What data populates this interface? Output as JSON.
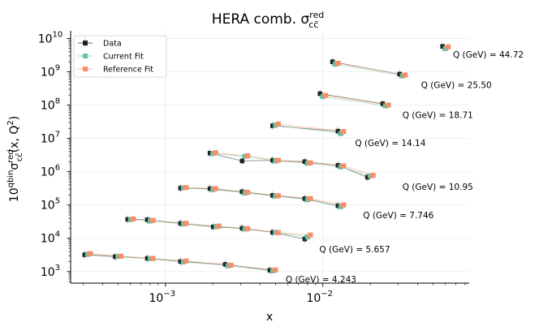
{
  "chart_data": {
    "type": "scatter",
    "title": "HERA comb. σ",
    "title_sup": "red",
    "title_sub": "cc̄",
    "xlabel": "x",
    "ylabel": {
      "main": "10",
      "main_sup": "qbin",
      "sym": "σ",
      "sym_sup": "red",
      "sym_sub": "cc̄",
      "args": "(x, Q",
      "args_sup": "2",
      "args_end": ")"
    },
    "xscale": "log",
    "yscale": "log",
    "xlim": [
      0.00025,
      0.085
    ],
    "ylim": [
      450,
      17000000000
    ],
    "x_ticks": [
      {
        "value": 0.001,
        "base": "10",
        "exp": "−3"
      },
      {
        "value": 0.01,
        "base": "10",
        "exp": "−2"
      }
    ],
    "y_ticks": [
      {
        "value": 1000,
        "base": "10",
        "exp": "3"
      },
      {
        "value": 10000,
        "base": "10",
        "exp": "4"
      },
      {
        "value": 100000,
        "base": "10",
        "exp": "5"
      },
      {
        "value": 1000000,
        "base": "10",
        "exp": "6"
      },
      {
        "value": 10000000,
        "base": "10",
        "exp": "7"
      },
      {
        "value": 100000000,
        "base": "10",
        "exp": "8"
      },
      {
        "value": 1000000000,
        "base": "10",
        "exp": "9"
      },
      {
        "value": 10000000000,
        "base": "10",
        "exp": "10"
      }
    ],
    "grid": true,
    "legend_position": "top-left",
    "series": [
      {
        "name": "Data",
        "color": "#222222",
        "marker": "square"
      },
      {
        "name": "Current Fit",
        "color": "#66c2a5",
        "marker": "square"
      },
      {
        "name": "Reference Fit",
        "color": "#fc8d62",
        "marker": "square"
      }
    ],
    "bins": [
      {
        "label": "Q (GeV) = 4.243",
        "label_x": 0.0058,
        "label_y": 560,
        "x": [
          0.00032,
          0.0005,
          0.0008,
          0.0013,
          0.0025,
          0.0048
        ],
        "data": [
          3200,
          2800,
          2500,
          2000,
          1650,
          1100
        ],
        "current": [
          3300,
          2850,
          2450,
          1950,
          1500,
          1050
        ],
        "reference": [
          3450,
          2900,
          2480,
          2080,
          1550,
          1120
        ]
      },
      {
        "label": "Q (GeV) = 5.657",
        "label_x": 0.0095,
        "label_y": 4500,
        "x": [
          0.0006,
          0.0008,
          0.0013,
          0.0021,
          0.0032,
          0.005,
          0.008
        ],
        "data": [
          37000,
          36000,
          28000,
          22000,
          20000,
          15000,
          9500
        ],
        "current": [
          36500,
          33000,
          27000,
          22500,
          19000,
          15200,
          11000
        ],
        "reference": [
          38000,
          34500,
          28000,
          23200,
          19500,
          14700,
          12500
        ]
      },
      {
        "label": "Q (GeV) = 7.746",
        "label_x": 0.018,
        "label_y": 48000,
        "x": [
          0.0013,
          0.002,
          0.0032,
          0.005,
          0.008,
          0.013
        ],
        "data": [
          320000,
          310000,
          250000,
          195000,
          155000,
          95000
        ],
        "current": [
          330000,
          290000,
          230000,
          185000,
          145000,
          90000
        ],
        "reference": [
          335000,
          310000,
          240000,
          190000,
          155000,
          100000
        ]
      },
      {
        "label": "Q (GeV) = 10.95",
        "label_x": 0.032,
        "label_y": 340000,
        "x": [
          0.002,
          0.0032,
          0.005,
          0.008,
          0.013,
          0.02
        ],
        "data": [
          3600000,
          2100000,
          2200000,
          2000000,
          1550000,
          680000
        ],
        "current": [
          3500000,
          2900000,
          2100000,
          1800000,
          1400000,
          750000
        ],
        "reference": [
          3700000,
          3000000,
          2200000,
          1850000,
          1500000,
          780000
        ]
      },
      {
        "label": "Q (GeV) = 14.14",
        "label_x": 0.016,
        "label_y": 7000000,
        "x": [
          0.005,
          0.013
        ],
        "data": [
          24000000,
          16500000
        ],
        "current": [
          25000000,
          14000000
        ],
        "reference": [
          27000000,
          16000000
        ]
      },
      {
        "label": "Q (GeV) = 18.71",
        "label_x": 0.032,
        "label_y": 48000000,
        "x": [
          0.01,
          0.025
        ],
        "data": [
          220000000,
          110000000
        ],
        "current": [
          180000000,
          95000000
        ],
        "reference": [
          195000000,
          100000000
        ]
      },
      {
        "label": "Q (GeV) = 25.50",
        "label_x": 0.042,
        "label_y": 380000000,
        "x": [
          0.012,
          0.032
        ],
        "data": [
          2000000000,
          850000000
        ],
        "current": [
          1700000000,
          750000000
        ],
        "reference": [
          1800000000,
          800000000
        ]
      },
      {
        "label": "Q (GeV) = 44.72",
        "label_x": 0.067,
        "label_y": 3200000000,
        "x": [
          0.06
        ],
        "data": [
          5800000000
        ],
        "current": [
          5000000000
        ],
        "reference": [
          5600000000
        ]
      }
    ]
  }
}
